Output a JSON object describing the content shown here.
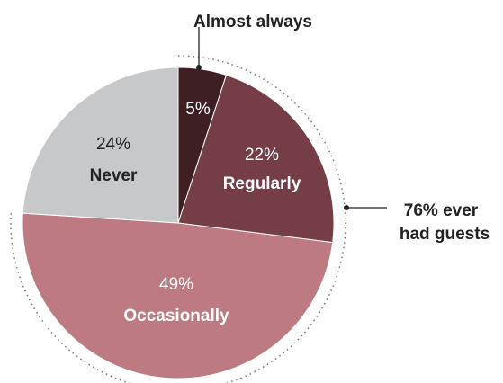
{
  "chart_data": {
    "type": "pie",
    "slices": [
      {
        "label": "Almost always",
        "value": 5,
        "pct_text": "5%",
        "color": "#3d1f24"
      },
      {
        "label": "Regularly",
        "value": 22,
        "pct_text": "22%",
        "color": "#753e47"
      },
      {
        "label": "Occasionally",
        "value": 49,
        "pct_text": "49%",
        "color": "#bd7a82"
      },
      {
        "label": "Never",
        "value": 24,
        "pct_text": "24%",
        "color": "#c7c8ca"
      }
    ],
    "annotations": {
      "almost_always": "Almost always",
      "ever_line1": "76% ever",
      "ever_line2": "had guests"
    }
  }
}
